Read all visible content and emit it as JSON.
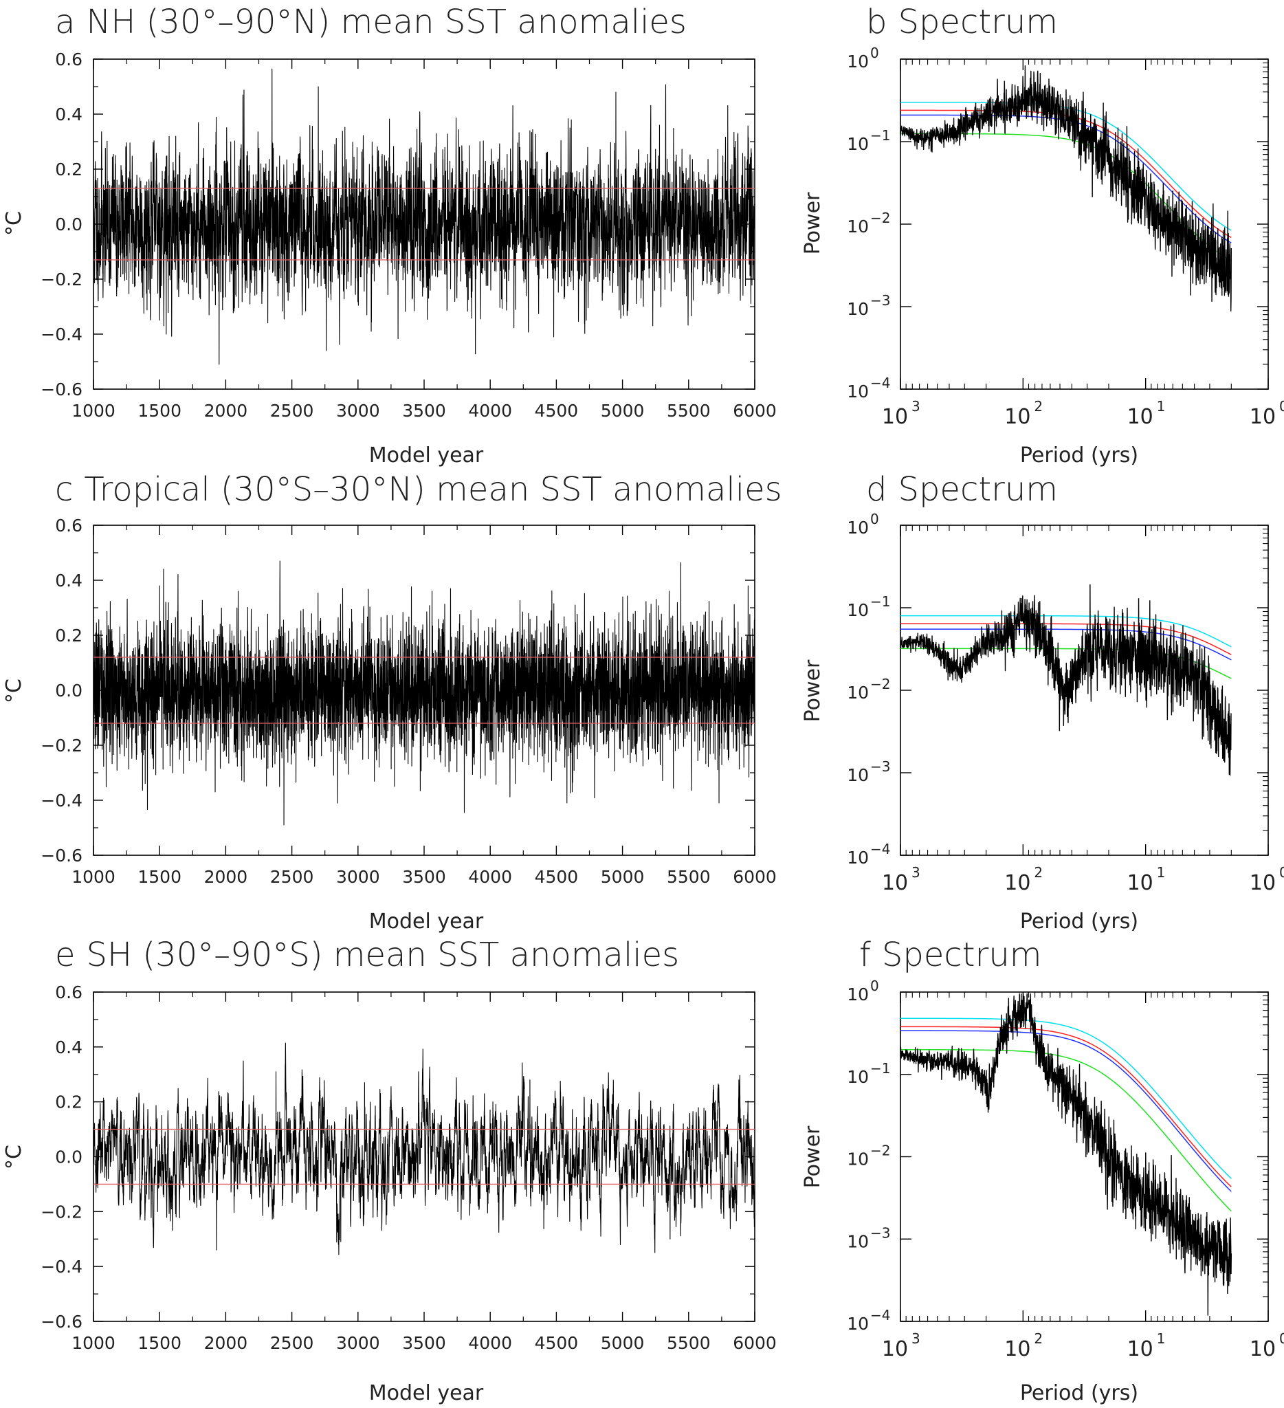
{
  "chart_data": [
    {
      "id": "a",
      "type": "line",
      "panel_letter": "a",
      "title": "NH (30°–90°N) mean SST anomalies",
      "xlabel": "Model year",
      "ylabel": "°C",
      "xlim": [
        1000,
        6000
      ],
      "ylim": [
        -0.6,
        0.6
      ],
      "xticks": [
        1000,
        1500,
        2000,
        2500,
        3000,
        3500,
        4000,
        4500,
        5000,
        5500,
        6000
      ],
      "yticks": [
        -0.6,
        -0.4,
        -0.2,
        0.0,
        0.2,
        0.4,
        0.6
      ],
      "xtick_labels": [
        "1000",
        "1500",
        "2000",
        "2500",
        "3000",
        "3500",
        "4000",
        "4500",
        "5000",
        "5500",
        "6000"
      ],
      "ytick_labels": [
        "−0.6",
        "−0.4",
        "−0.2",
        "0.0",
        "0.2",
        "0.4",
        "0.6"
      ],
      "series": [
        {
          "name": "SST anomaly",
          "color": "#000000",
          "std": 0.13,
          "smooth": 0.45,
          "seed": 11,
          "extremes": [
            [
              1950,
              -0.51
            ],
            [
              2130,
              0.47
            ],
            [
              2700,
              0.5
            ],
            [
              2760,
              -0.46
            ],
            [
              3100,
              -0.39
            ],
            [
              4950,
              0.48
            ],
            [
              4480,
              -0.41
            ],
            [
              1550,
              -0.4
            ],
            [
              4300,
              0.34
            ],
            [
              5280,
              0.36
            ]
          ]
        }
      ],
      "hlines": [
        {
          "name": "+1 std",
          "y": 0.13,
          "color": "#e06060"
        },
        {
          "name": "-1 std",
          "y": -0.13,
          "color": "#e06060"
        }
      ]
    },
    {
      "id": "b",
      "type": "line",
      "panel_letter": "b",
      "title": "Spectrum",
      "xlabel": "Period (yrs)",
      "ylabel": "Power",
      "xscale": "log-reversed",
      "yscale": "log",
      "xlim": [
        1000,
        1
      ],
      "ylim": [
        0.0001,
        1
      ],
      "xtick_labels": [
        {
          "base": "10",
          "exp": "3"
        },
        {
          "base": "10",
          "exp": "2"
        },
        {
          "base": "10",
          "exp": "1"
        },
        {
          "base": "10",
          "exp": "0"
        }
      ],
      "ytick_labels": [
        {
          "base": "10",
          "exp": "0"
        },
        {
          "base": "10",
          "exp": "−1"
        },
        {
          "base": "10",
          "exp": "−2"
        },
        {
          "base": "10",
          "exp": "−3"
        },
        {
          "base": "10",
          "exp": "−4"
        }
      ],
      "red_noise": [
        {
          "name": "cyan",
          "color": "#00e0f0",
          "plateau": 0.3,
          "corner": 18,
          "tail": 0.0048
        },
        {
          "name": "red",
          "color": "#ff2020",
          "plateau": 0.24,
          "corner": 18,
          "tail": 0.004
        },
        {
          "name": "blue",
          "color": "#2030ff",
          "plateau": 0.21,
          "corner": 18,
          "tail": 0.0034
        },
        {
          "name": "green",
          "color": "#20e020",
          "plateau": 0.125,
          "corner": 18,
          "tail": 0.0021
        }
      ],
      "spectrum_shape": [
        [
          1000,
          0.14
        ],
        [
          700,
          0.11
        ],
        [
          400,
          0.12
        ],
        [
          200,
          0.22
        ],
        [
          150,
          0.25
        ],
        [
          100,
          0.3
        ],
        [
          85,
          0.35
        ],
        [
          70,
          0.3
        ],
        [
          50,
          0.25
        ],
        [
          30,
          0.11
        ],
        [
          15,
          0.04
        ],
        [
          7,
          0.012
        ],
        [
          3,
          0.004
        ],
        [
          2,
          0.0028
        ]
      ],
      "spectrum_noise": 0.45,
      "seed": 21
    },
    {
      "id": "c",
      "type": "line",
      "panel_letter": "c",
      "title": "Tropical (30°S–30°N) mean SST anomalies",
      "xlabel": "Model year",
      "ylabel": "°C",
      "xlim": [
        1000,
        6000
      ],
      "ylim": [
        -0.6,
        0.6
      ],
      "xticks": [
        1000,
        1500,
        2000,
        2500,
        3000,
        3500,
        4000,
        4500,
        5000,
        5500,
        6000
      ],
      "yticks": [
        -0.6,
        -0.4,
        -0.2,
        0.0,
        0.2,
        0.4,
        0.6
      ],
      "xtick_labels": [
        "1000",
        "1500",
        "2000",
        "2500",
        "3000",
        "3500",
        "4000",
        "4500",
        "5000",
        "5500",
        "6000"
      ],
      "ytick_labels": [
        "−0.6",
        "−0.4",
        "−0.2",
        "0.0",
        "0.2",
        "0.4",
        "0.6"
      ],
      "series": [
        {
          "name": "SST anomaly",
          "color": "#000000",
          "std": 0.12,
          "smooth": 0.1,
          "seed": 33,
          "extremes": [
            [
              2410,
              0.47
            ],
            [
              2440,
              -0.49
            ],
            [
              1920,
              -0.37
            ],
            [
              4580,
              -0.41
            ],
            [
              5730,
              -0.41
            ],
            [
              5950,
              0.38
            ],
            [
              3700,
              0.37
            ],
            [
              1500,
              0.38
            ]
          ]
        }
      ],
      "hlines": [
        {
          "name": "+1 std",
          "y": 0.12,
          "color": "#e06060"
        },
        {
          "name": "-1 std",
          "y": -0.12,
          "color": "#e06060"
        }
      ]
    },
    {
      "id": "d",
      "type": "line",
      "panel_letter": "d",
      "title": "Spectrum",
      "xlabel": "Period (yrs)",
      "ylabel": "Power",
      "xscale": "log-reversed",
      "yscale": "log",
      "xlim": [
        1000,
        1
      ],
      "ylim": [
        0.0001,
        1
      ],
      "xtick_labels": [
        {
          "base": "10",
          "exp": "3"
        },
        {
          "base": "10",
          "exp": "2"
        },
        {
          "base": "10",
          "exp": "1"
        },
        {
          "base": "10",
          "exp": "0"
        }
      ],
      "ytick_labels": [
        {
          "base": "10",
          "exp": "0"
        },
        {
          "base": "10",
          "exp": "−1"
        },
        {
          "base": "10",
          "exp": "−2"
        },
        {
          "base": "10",
          "exp": "−3"
        },
        {
          "base": "10",
          "exp": "−4"
        }
      ],
      "red_noise": [
        {
          "name": "cyan",
          "color": "#00e0f0",
          "plateau": 0.08,
          "corner": 3.2,
          "tail": 0.0155
        },
        {
          "name": "red",
          "color": "#ff2020",
          "plateau": 0.064,
          "corner": 3.2,
          "tail": 0.0125
        },
        {
          "name": "blue",
          "color": "#2030ff",
          "plateau": 0.055,
          "corner": 3.2,
          "tail": 0.011
        },
        {
          "name": "green",
          "color": "#20e020",
          "plateau": 0.032,
          "corner": 3.2,
          "tail": 0.0068
        }
      ],
      "spectrum_shape": [
        [
          1000,
          0.035
        ],
        [
          700,
          0.04
        ],
        [
          500,
          0.03
        ],
        [
          320,
          0.017
        ],
        [
          200,
          0.04
        ],
        [
          120,
          0.05
        ],
        [
          105,
          0.085
        ],
        [
          90,
          0.07
        ],
        [
          60,
          0.03
        ],
        [
          45,
          0.008
        ],
        [
          30,
          0.03
        ],
        [
          15,
          0.03
        ],
        [
          8,
          0.025
        ],
        [
          4,
          0.015
        ],
        [
          3,
          0.007
        ],
        [
          2,
          0.0025
        ]
      ],
      "spectrum_noise": 0.5,
      "seed": 44
    },
    {
      "id": "e",
      "type": "line",
      "panel_letter": "e",
      "title": "SH (30°–90°S) mean SST anomalies",
      "xlabel": "Model year",
      "ylabel": "°C",
      "xlim": [
        1000,
        6000
      ],
      "ylim": [
        -0.6,
        0.6
      ],
      "xticks": [
        1000,
        1500,
        2000,
        2500,
        3000,
        3500,
        4000,
        4500,
        5000,
        5500,
        6000
      ],
      "yticks": [
        -0.6,
        -0.4,
        -0.2,
        0.0,
        0.2,
        0.4,
        0.6
      ],
      "xtick_labels": [
        "1000",
        "1500",
        "2000",
        "2500",
        "3000",
        "3500",
        "4000",
        "4500",
        "5000",
        "5500",
        "6000"
      ],
      "ytick_labels": [
        "−0.6",
        "−0.4",
        "−0.2",
        "0.0",
        "0.2",
        "0.4",
        "0.6"
      ],
      "series": [
        {
          "name": "SST anomaly",
          "color": "#000000",
          "std": 0.1,
          "smooth": 0.85,
          "seed": 55,
          "extremes": [
            [
              1930,
              -0.34
            ],
            [
              2380,
              0.31
            ],
            [
              2870,
              -0.31
            ],
            [
              5360,
              -0.3
            ],
            [
              5880,
              0.28
            ],
            [
              4300,
              0.28
            ],
            [
              3050,
              0.27
            ]
          ]
        }
      ],
      "hlines": [
        {
          "name": "+1 std",
          "y": 0.1,
          "color": "#e06060"
        },
        {
          "name": "-1 std",
          "y": -0.1,
          "color": "#e06060"
        }
      ]
    },
    {
      "id": "f",
      "type": "line",
      "panel_letter": "f",
      "title": "Spectrum",
      "xlabel": "Period (yrs)",
      "ylabel": "Power",
      "xscale": "log-reversed",
      "yscale": "log",
      "xlim": [
        1000,
        1
      ],
      "ylim": [
        0.0001,
        1
      ],
      "xtick_labels": [
        {
          "base": "10",
          "exp": "3"
        },
        {
          "base": "10",
          "exp": "2"
        },
        {
          "base": "10",
          "exp": "1"
        },
        {
          "base": "10",
          "exp": "0"
        }
      ],
      "ytick_labels": [
        {
          "base": "10",
          "exp": "0"
        },
        {
          "base": "10",
          "exp": "−1"
        },
        {
          "base": "10",
          "exp": "−2"
        },
        {
          "base": "10",
          "exp": "−3"
        },
        {
          "base": "10",
          "exp": "−4"
        }
      ],
      "red_noise": [
        {
          "name": "cyan",
          "color": "#00e0f0",
          "plateau": 0.48,
          "corner": 22,
          "tail": 0.0015
        },
        {
          "name": "red",
          "color": "#ff2020",
          "plateau": 0.38,
          "corner": 22,
          "tail": 0.0012
        },
        {
          "name": "blue",
          "color": "#2030ff",
          "plateau": 0.34,
          "corner": 22,
          "tail": 0.001
        },
        {
          "name": "green",
          "color": "#20e020",
          "plateau": 0.2,
          "corner": 22,
          "tail": 0.00055
        }
      ],
      "spectrum_shape": [
        [
          1000,
          0.18
        ],
        [
          700,
          0.15
        ],
        [
          400,
          0.14
        ],
        [
          250,
          0.12
        ],
        [
          190,
          0.06
        ],
        [
          150,
          0.3
        ],
        [
          110,
          0.5
        ],
        [
          90,
          0.65
        ],
        [
          75,
          0.18
        ],
        [
          50,
          0.08
        ],
        [
          30,
          0.03
        ],
        [
          15,
          0.005
        ],
        [
          8,
          0.0025
        ],
        [
          5,
          0.0012
        ],
        [
          3,
          0.0008
        ],
        [
          2,
          0.0006
        ]
      ],
      "spectrum_noise": 0.45,
      "seed": 66
    }
  ]
}
